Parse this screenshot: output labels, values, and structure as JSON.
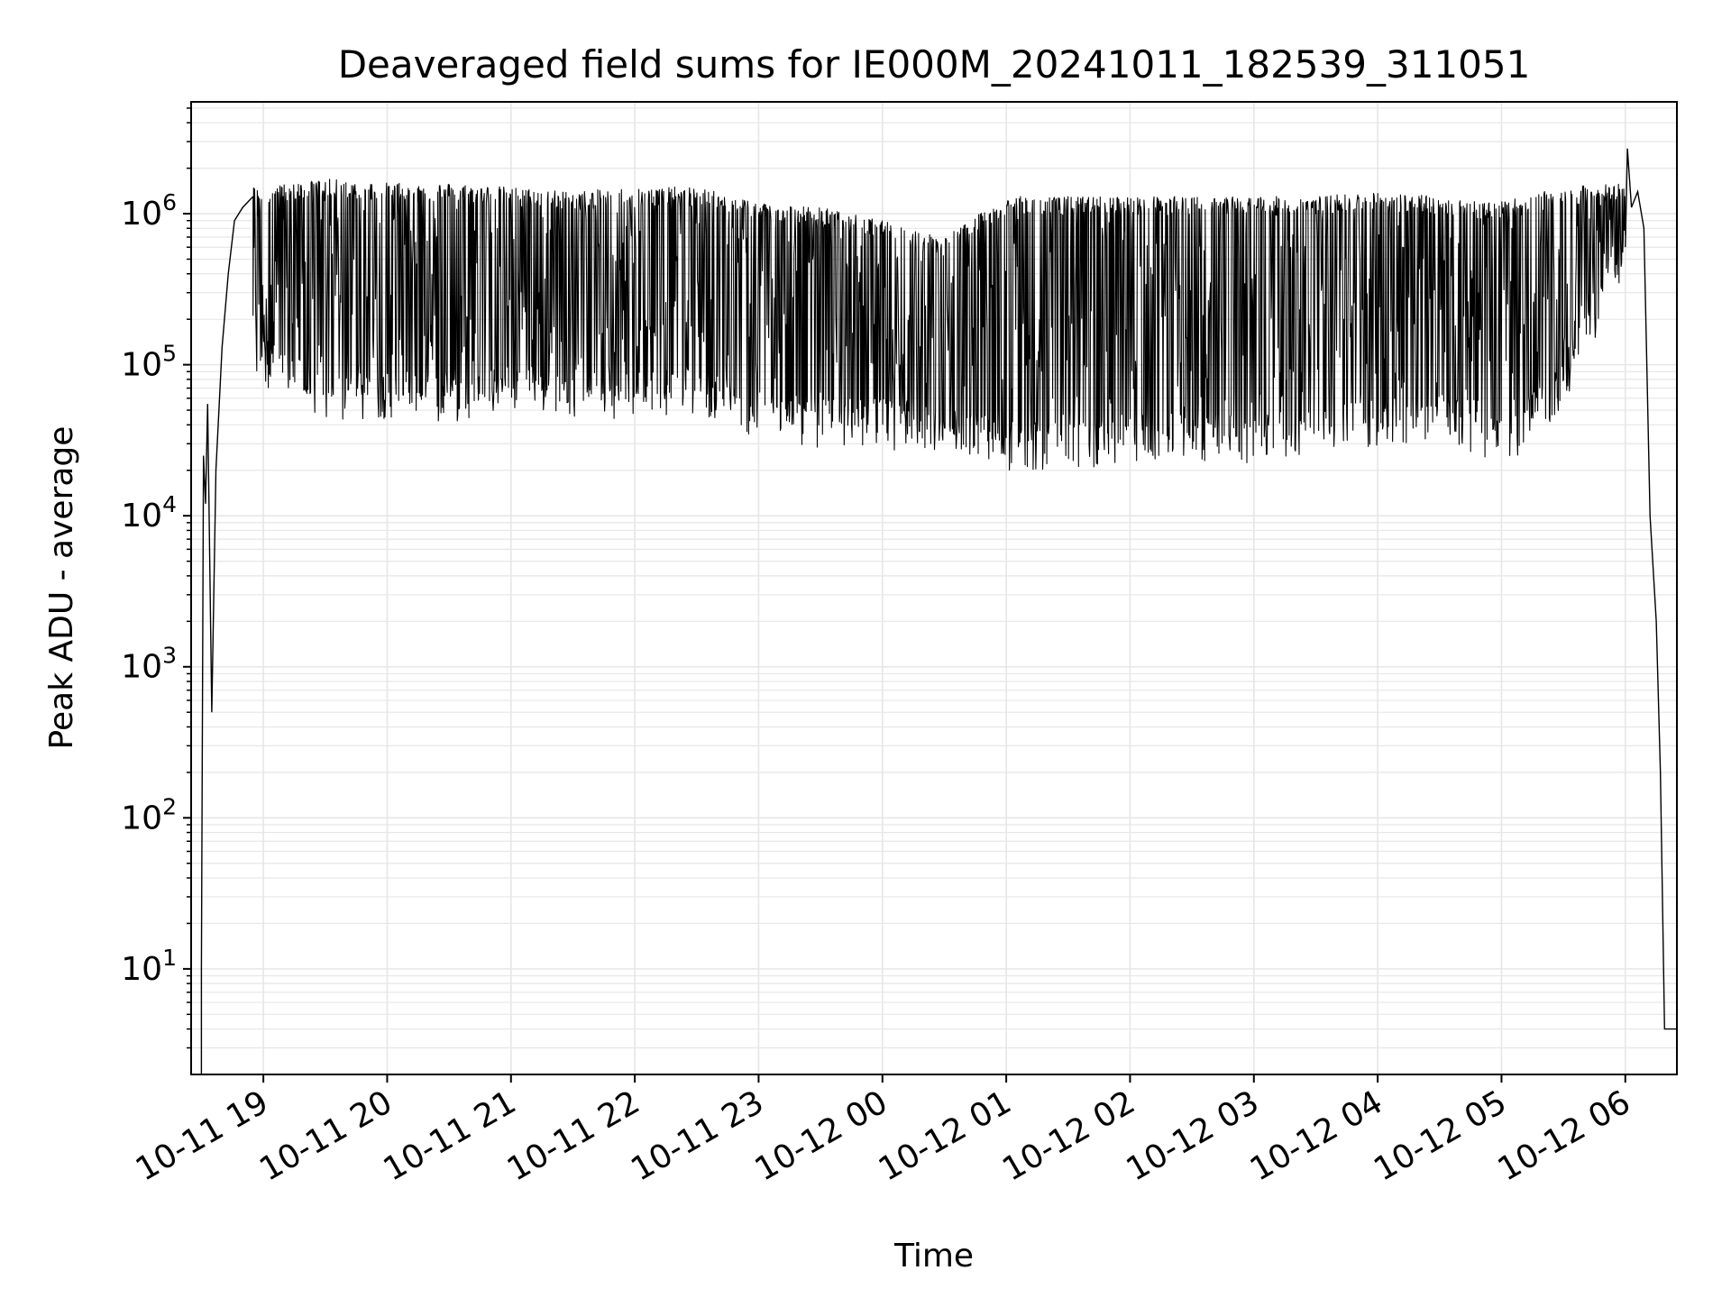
{
  "chart_data": {
    "type": "line",
    "title": "Deaveraged field sums for IE000M_20241011_182539_311051",
    "xlabel": "Time",
    "ylabel": "Peak ADU - average",
    "yscale": "log",
    "ylim": [
      2,
      5500000
    ],
    "xlim": [
      "2024-10-11 18:25",
      "2024-10-12 06:25"
    ],
    "grid": "on",
    "grid_minor": "on",
    "line_color": "#000000",
    "grid_color": "#e6e6e6",
    "x_ticks": [
      {
        "value": "2024-10-11 19:00",
        "label": "10-11 19"
      },
      {
        "value": "2024-10-11 20:00",
        "label": "10-11 20"
      },
      {
        "value": "2024-10-11 21:00",
        "label": "10-11 21"
      },
      {
        "value": "2024-10-11 22:00",
        "label": "10-11 22"
      },
      {
        "value": "2024-10-11 23:00",
        "label": "10-11 23"
      },
      {
        "value": "2024-10-12 00:00",
        "label": "10-12 00"
      },
      {
        "value": "2024-10-12 01:00",
        "label": "10-12 01"
      },
      {
        "value": "2024-10-12 02:00",
        "label": "10-12 02"
      },
      {
        "value": "2024-10-12 03:00",
        "label": "10-12 03"
      },
      {
        "value": "2024-10-12 04:00",
        "label": "10-12 04"
      },
      {
        "value": "2024-10-12 05:00",
        "label": "10-12 05"
      },
      {
        "value": "2024-10-12 06:00",
        "label": "10-12 06"
      }
    ],
    "y_ticks": [
      {
        "value": 10,
        "base": "10",
        "exp": "1"
      },
      {
        "value": 100,
        "base": "10",
        "exp": "2"
      },
      {
        "value": 1000,
        "base": "10",
        "exp": "3"
      },
      {
        "value": 10000,
        "base": "10",
        "exp": "4"
      },
      {
        "value": 100000,
        "base": "10",
        "exp": "5"
      },
      {
        "value": 1000000,
        "base": "10",
        "exp": "6"
      }
    ],
    "series": [
      {
        "x": [
          "2024-10-11 18:30",
          "2024-10-11 18:31",
          "2024-10-11 18:32",
          "2024-10-11 18:33",
          "2024-10-11 18:35",
          "2024-10-11 18:37",
          "2024-10-11 18:40",
          "2024-10-11 18:43",
          "2024-10-11 18:46",
          "2024-10-11 18:50",
          "2024-10-11 18:55"
        ],
        "values": [
          10,
          25000,
          12000,
          55000,
          500,
          20000,
          130000,
          400000,
          900000,
          1100000,
          1300000
        ]
      },
      {
        "x": [
          "2024-10-11 19:00",
          "2024-10-11 19:30",
          "2024-10-11 20:00",
          "2024-10-11 20:30",
          "2024-10-11 21:00",
          "2024-10-11 21:30",
          "2024-10-11 22:00",
          "2024-10-11 22:30",
          "2024-10-11 23:00",
          "2024-10-11 23:30",
          "2024-10-12 00:00",
          "2024-10-12 00:30",
          "2024-10-12 01:00",
          "2024-10-12 01:30",
          "2024-10-12 02:00",
          "2024-10-12 02:30",
          "2024-10-12 03:00",
          "2024-10-12 03:30",
          "2024-10-12 04:00",
          "2024-10-12 04:30",
          "2024-10-12 05:00",
          "2024-10-12 05:30",
          "2024-10-12 06:00"
        ],
        "upper": [
          1500000,
          1700000,
          1600000,
          1600000,
          1500000,
          1400000,
          1500000,
          1500000,
          1200000,
          1100000,
          900000,
          700000,
          1300000,
          1300000,
          1300000,
          1300000,
          1300000,
          1300000,
          1400000,
          1300000,
          1200000,
          1500000,
          1600000
        ],
        "lower": [
          90000,
          50000,
          55000,
          50000,
          60000,
          55000,
          55000,
          60000,
          40000,
          35000,
          35000,
          30000,
          25000,
          25000,
          28000,
          28000,
          28000,
          30000,
          35000,
          40000,
          25000,
          60000,
          500000
        ]
      },
      {
        "x": [
          "2024-10-12 06:00",
          "2024-10-12 06:01",
          "2024-10-12 06:03",
          "2024-10-12 06:06",
          "2024-10-12 06:09",
          "2024-10-12 06:12",
          "2024-10-12 06:15",
          "2024-10-12 06:17",
          "2024-10-12 06:19",
          "2024-10-12 06:20",
          "2024-10-12 06:25"
        ],
        "values": [
          600000,
          2700000,
          1100000,
          1400000,
          800000,
          10000,
          2000,
          200,
          4,
          4,
          4
        ]
      }
    ]
  }
}
